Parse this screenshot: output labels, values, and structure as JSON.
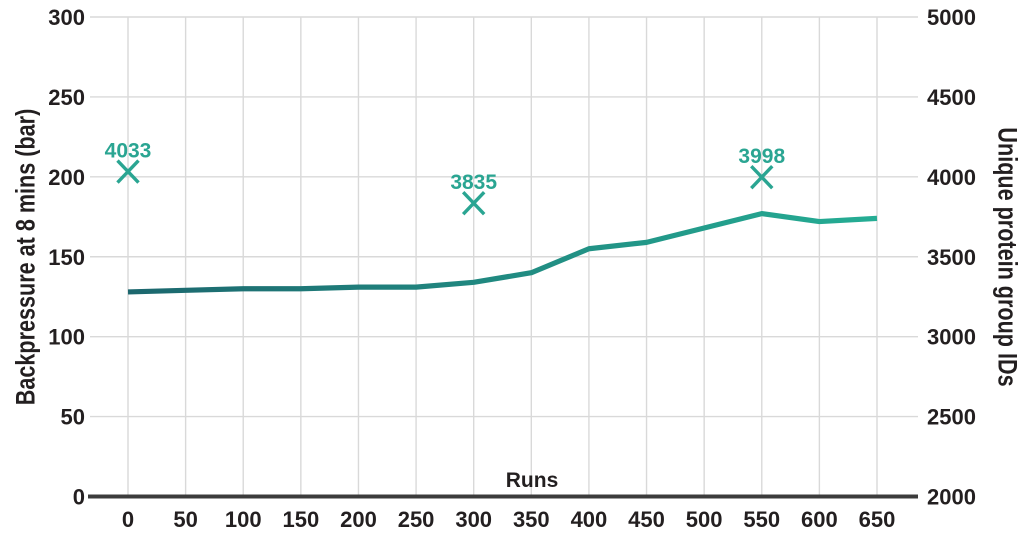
{
  "chart_data": {
    "type": "line",
    "title": "",
    "grid": true,
    "legend_position": "none",
    "x_axis": {
      "label": "Runs",
      "min": 0,
      "max": 650,
      "ticks": [
        0,
        50,
        100,
        150,
        200,
        250,
        300,
        350,
        400,
        450,
        500,
        550,
        600,
        650
      ]
    },
    "left_axis": {
      "title": "Backpressure at 8 mins (bar)",
      "min": 0,
      "max": 300,
      "ticks": [
        0,
        50,
        100,
        150,
        200,
        250,
        300
      ]
    },
    "right_axis": {
      "title": "Unique protein group IDs",
      "min": 2000,
      "max": 5000,
      "ticks": [
        2000,
        2500,
        3000,
        3500,
        4000,
        4500,
        5000
      ]
    },
    "series": [
      {
        "name": "Backpressure at 8 mins (bar)",
        "type": "line",
        "axis": "left",
        "x": [
          0,
          50,
          100,
          150,
          200,
          250,
          300,
          350,
          400,
          450,
          500,
          550,
          600,
          650
        ],
        "values": [
          128,
          129,
          130,
          130,
          131,
          131,
          134,
          140,
          155,
          159,
          168,
          177,
          172,
          174
        ],
        "gradient": [
          "#1c676e",
          "#25ad94"
        ]
      },
      {
        "name": "Unique protein group IDs",
        "type": "scatter",
        "axis": "right",
        "marker": "x",
        "color": "#2aa592",
        "points": [
          {
            "x": 0,
            "y": 4033,
            "label": "4033"
          },
          {
            "x": 300,
            "y": 3835,
            "label": "3835"
          },
          {
            "x": 550,
            "y": 3998,
            "label": "3998"
          }
        ]
      }
    ],
    "colors": {
      "grid": "#d9d9d9",
      "axis": "#3c3c3c",
      "text": "#231f20",
      "background": "#ffffff"
    }
  }
}
